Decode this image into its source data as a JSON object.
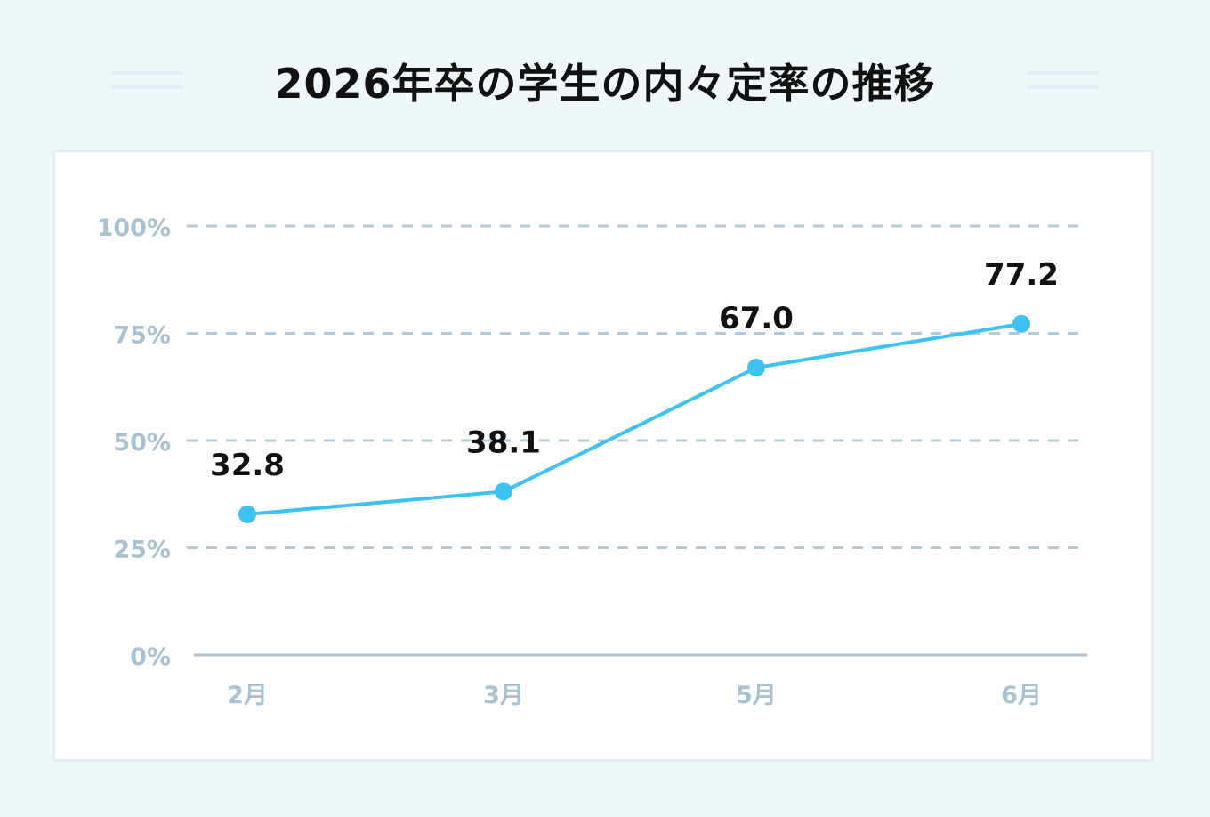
{
  "title": "2026年卒の学生の内々定率の推移",
  "colors": {
    "background": "#eff7fb",
    "line": "#3ec2ef",
    "grid": "#b5c8d3",
    "axis_label": "#a8c2d2",
    "value_label": "#111111"
  },
  "chart_data": {
    "type": "line",
    "title": "2026年卒の学生の内々定率の推移",
    "xlabel": "",
    "ylabel": "",
    "categories": [
      "2月",
      "3月",
      "5月",
      "6月"
    ],
    "series": [
      {
        "values": [
          32.8,
          38.1,
          67.0,
          77.2
        ],
        "labels": [
          "32.8",
          "38.1",
          "67.0",
          "77.2"
        ]
      }
    ],
    "ylim": [
      0,
      100
    ],
    "yticks": [
      0,
      25,
      50,
      75,
      100
    ],
    "ytick_labels": [
      "0%",
      "25%",
      "50%",
      "75%",
      "100%"
    ],
    "grid": true,
    "legend": "none"
  }
}
